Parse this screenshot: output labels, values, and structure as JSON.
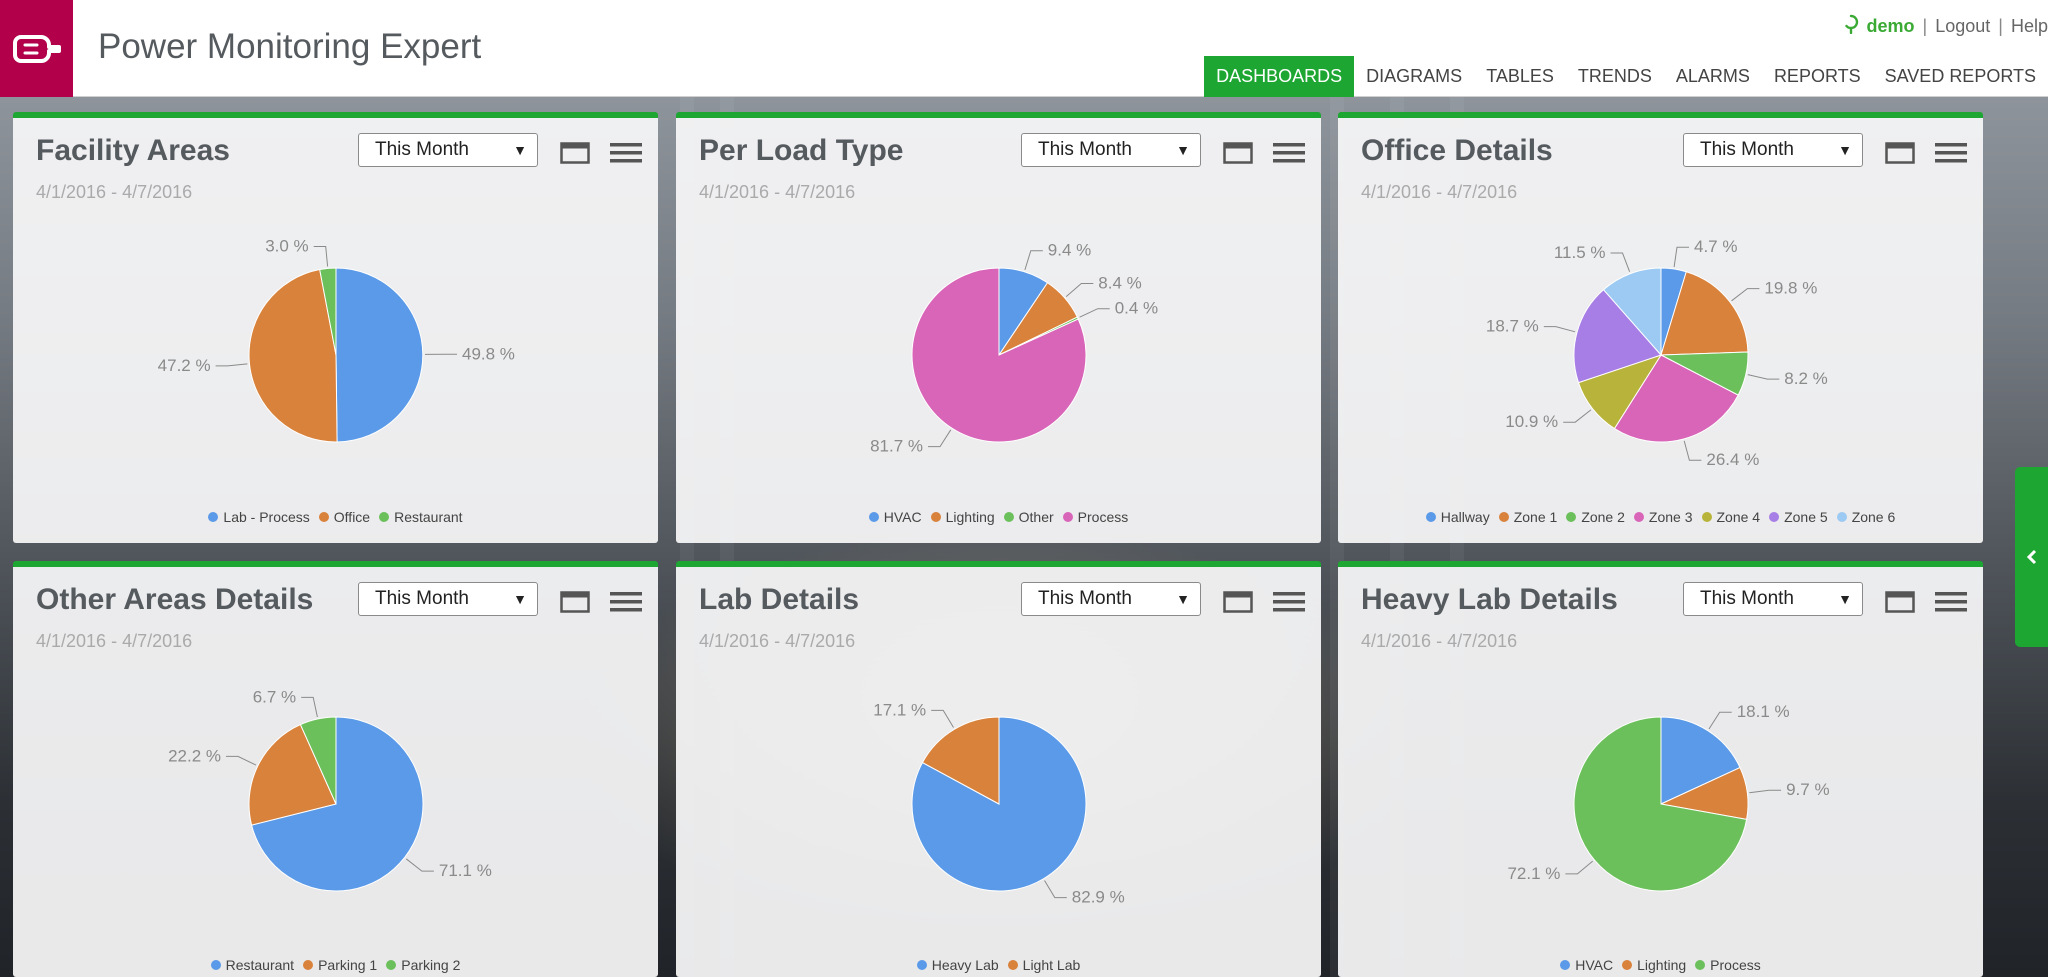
{
  "app": {
    "title": "Power Monitoring Expert",
    "logo_icon": "plug-hand-icon",
    "brand_color": "#b3004a"
  },
  "user": {
    "name": "demo",
    "logout": "Logout",
    "help": "Help"
  },
  "nav": {
    "active_color": "#1da632",
    "items": [
      {
        "label": "DASHBOARDS",
        "active": true
      },
      {
        "label": "DIAGRAMS",
        "active": false
      },
      {
        "label": "TABLES",
        "active": false
      },
      {
        "label": "TRENDS",
        "active": false
      },
      {
        "label": "ALARMS",
        "active": false
      },
      {
        "label": "REPORTS",
        "active": false
      },
      {
        "label": "SAVED REPORTS",
        "active": false
      }
    ]
  },
  "panels": [
    {
      "title": "Facility Areas",
      "range": "This Month",
      "date": "4/1/2016 - 4/7/2016",
      "chart_data": {
        "type": "pie",
        "categories": [
          "Lab - Process",
          "Office",
          "Restaurant"
        ],
        "values": [
          49.8,
          47.2,
          3.0
        ],
        "labels": [
          "49.8 %",
          "47.2 %",
          "3.0 %"
        ],
        "colors": [
          "#5b9ae8",
          "#d9823b",
          "#6cc05c"
        ]
      }
    },
    {
      "title": "Per Load Type",
      "range": "This Month",
      "date": "4/1/2016 - 4/7/2016",
      "chart_data": {
        "type": "pie",
        "categories": [
          "HVAC",
          "Lighting",
          "Other",
          "Process"
        ],
        "values": [
          9.4,
          8.4,
          0.4,
          81.7
        ],
        "labels": [
          "9.4 %",
          "8.4 %",
          "0.4 %",
          "81.7 %"
        ],
        "colors": [
          "#5b9ae8",
          "#d9823b",
          "#6cc05c",
          "#d865b8"
        ]
      }
    },
    {
      "title": "Office Details",
      "range": "This Month",
      "date": "4/1/2016 - 4/7/2016",
      "chart_data": {
        "type": "pie",
        "categories": [
          "Hallway",
          "Zone 1",
          "Zone 2",
          "Zone 3",
          "Zone 4",
          "Zone 5",
          "Zone 6"
        ],
        "values": [
          4.7,
          19.8,
          8.2,
          26.4,
          10.9,
          18.7,
          11.5
        ],
        "labels": [
          "4.7 %",
          "19.8 %",
          "8.2 %",
          "26.4 %",
          "10.9 %",
          "18.7 %",
          "11.5 %"
        ],
        "colors": [
          "#5b9ae8",
          "#d9823b",
          "#6cc05c",
          "#d865b8",
          "#b8b33a",
          "#a77ee6",
          "#9ccaf2"
        ]
      }
    },
    {
      "title": "Other Areas Details",
      "range": "This Month",
      "date": "4/1/2016 - 4/7/2016",
      "chart_data": {
        "type": "pie",
        "categories": [
          "Restaurant",
          "Parking 1",
          "Parking 2"
        ],
        "values": [
          71.1,
          22.2,
          6.7
        ],
        "labels": [
          "71.1 %",
          "22.2 %",
          "6.7 %"
        ],
        "colors": [
          "#5b9ae8",
          "#d9823b",
          "#6cc05c"
        ]
      }
    },
    {
      "title": "Lab Details",
      "range": "This Month",
      "date": "4/1/2016 - 4/7/2016",
      "chart_data": {
        "type": "pie",
        "categories": [
          "Heavy Lab",
          "Light Lab"
        ],
        "values": [
          82.9,
          17.1
        ],
        "labels": [
          "82.9 %",
          "17.1 %"
        ],
        "colors": [
          "#5b9ae8",
          "#d9823b"
        ]
      }
    },
    {
      "title": "Heavy Lab Details",
      "range": "This Month",
      "date": "4/1/2016 - 4/7/2016",
      "chart_data": {
        "type": "pie",
        "categories": [
          "HVAC",
          "Lighting",
          "Process"
        ],
        "values": [
          18.1,
          9.7,
          72.1
        ],
        "labels": [
          "18.1 %",
          "9.7 %",
          "72.1 %"
        ],
        "colors": [
          "#5b9ae8",
          "#d9823b",
          "#6cc05c"
        ]
      }
    }
  ],
  "side_toggle": {
    "icon": "chevron-left-icon"
  }
}
